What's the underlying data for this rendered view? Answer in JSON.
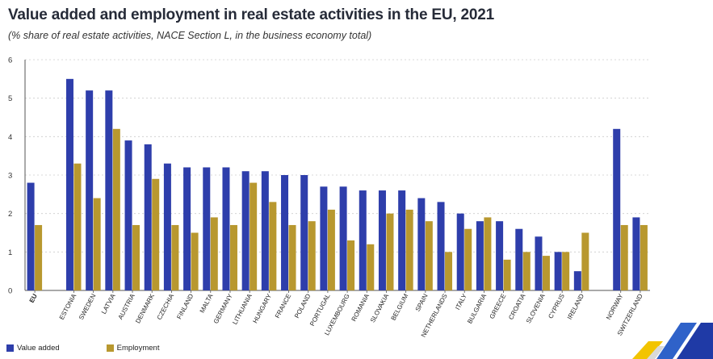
{
  "title": "Value added and employment in real estate activities in the EU, 2021",
  "subtitle": "(% share of real estate activities, NACE Section L, in the business economy total)",
  "colors": {
    "value_added": "#2e3eab",
    "employment": "#b8982f",
    "axis": "#555555",
    "grid": "#cccccc"
  },
  "legend": [
    {
      "label": "Value added",
      "color": "#2e3eab"
    },
    {
      "label": "Employment",
      "color": "#b8982f"
    }
  ],
  "chart_data": {
    "type": "bar",
    "title": "Value added and employment in real estate activities in the EU, 2021",
    "xlabel": "",
    "ylabel": "",
    "ylim": [
      0,
      6
    ],
    "yticks": [
      0,
      1,
      2,
      3,
      4,
      5,
      6
    ],
    "grid": true,
    "legend_position": "bottom-left",
    "categories": [
      "EU",
      "",
      "ESTONIA",
      "SWEDEN",
      "LATVIA",
      "AUSTRIA",
      "DENMARK",
      "CZECHIA",
      "FINLAND",
      "MALTA",
      "GERMANY",
      "LITHUANIA",
      "HUNGARY",
      "FRANCE",
      "POLAND",
      "PORTUGAL",
      "LUXEMBOURG",
      "ROMANIA",
      "SLOVAKIA",
      "BELGIUM",
      "SPAIN",
      "NETHERLANDS",
      "ITALY",
      "BULGARIA",
      "GREECE",
      "CROATIA",
      "SLOVENIA",
      "CYPRUS",
      "IRELAND",
      "",
      "NORWAY",
      "SWITZERLAND"
    ],
    "bold_categories": [
      "EU"
    ],
    "series": [
      {
        "name": "Value added",
        "values": [
          2.8,
          null,
          5.5,
          5.2,
          5.2,
          3.9,
          3.8,
          3.3,
          3.2,
          3.2,
          3.2,
          3.1,
          3.1,
          3.0,
          3.0,
          2.7,
          2.7,
          2.6,
          2.6,
          2.6,
          2.4,
          2.3,
          2.0,
          1.8,
          1.8,
          1.6,
          1.4,
          1.0,
          0.5,
          null,
          4.2,
          1.9
        ]
      },
      {
        "name": "Employment",
        "values": [
          1.7,
          null,
          3.3,
          2.4,
          4.2,
          1.7,
          2.9,
          1.7,
          1.5,
          1.9,
          1.7,
          2.8,
          2.3,
          1.7,
          1.8,
          2.1,
          1.3,
          1.2,
          2.0,
          2.1,
          1.8,
          1.0,
          1.6,
          1.9,
          0.8,
          1.0,
          0.9,
          1.0,
          1.5,
          null,
          1.7,
          1.7
        ]
      }
    ]
  }
}
